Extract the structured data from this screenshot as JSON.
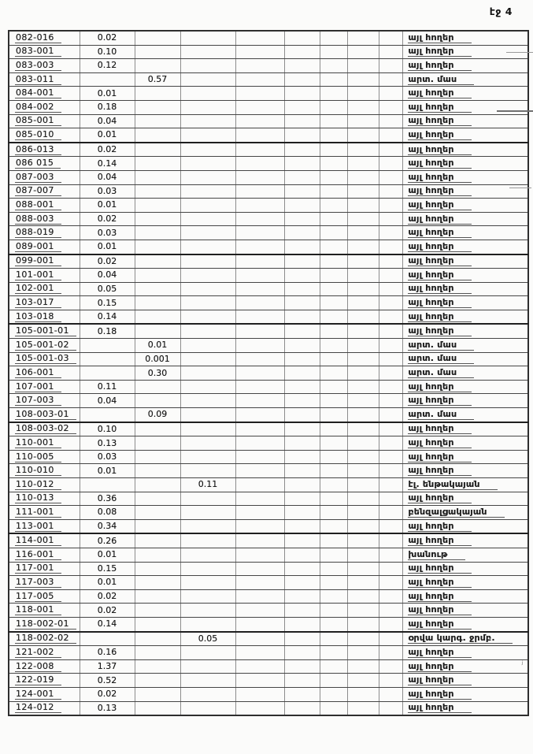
{
  "page": {
    "label": "էջ 4",
    "background": "#fbfbfa",
    "ink": "#1d1d1d"
  },
  "table": {
    "column_roles": [
      "parcel-code",
      "value-1",
      "value-2",
      "value-3",
      "empty",
      "empty",
      "empty",
      "empty",
      "empty",
      "land-type"
    ],
    "heavy_rule_after_codes": [
      "085-010",
      "089-001",
      "103-018",
      "108-003-01",
      "113-001",
      "118-002-01"
    ],
    "rows": [
      {
        "code": "082-016",
        "v1": "0.02",
        "v2": "",
        "v3": "",
        "name": "այլ հողեր"
      },
      {
        "code": "083-001",
        "v1": "0.10",
        "v2": "",
        "v3": "",
        "name": "այլ հողեր"
      },
      {
        "code": "083-003",
        "v1": "0.12",
        "v2": "",
        "v3": "",
        "name": "այլ հողեր"
      },
      {
        "code": "083-011",
        "v1": "",
        "v2": "0.57",
        "v3": "",
        "name": "արտ. մաս"
      },
      {
        "code": "084-001",
        "v1": "0.01",
        "v2": "",
        "v3": "",
        "name": "այլ հողեր"
      },
      {
        "code": "084-002",
        "v1": "0.18",
        "v2": "",
        "v3": "",
        "name": "այլ հողեր"
      },
      {
        "code": "085-001",
        "v1": "0.04",
        "v2": "",
        "v3": "",
        "name": "այլ հողեր"
      },
      {
        "code": "085-010",
        "v1": "0.01",
        "v2": "",
        "v3": "",
        "name": "այլ հողեր"
      },
      {
        "code": "086-013",
        "v1": "0.02",
        "v2": "",
        "v3": "",
        "name": "այլ հողեր"
      },
      {
        "code": "086 015",
        "v1": "0.14",
        "v2": "",
        "v3": "",
        "name": "այլ հողեր"
      },
      {
        "code": "087-003",
        "v1": "0.04",
        "v2": "",
        "v3": "",
        "name": "այլ հողեր"
      },
      {
        "code": "087-007",
        "v1": "0.03",
        "v2": "",
        "v3": "",
        "name": "այլ հողեր"
      },
      {
        "code": "088-001",
        "v1": "0.01",
        "v2": "",
        "v3": "",
        "name": "այլ հողեր"
      },
      {
        "code": "088-003",
        "v1": "0.02",
        "v2": "",
        "v3": "",
        "name": "այլ հողեր"
      },
      {
        "code": "088-019",
        "v1": "0.03",
        "v2": "",
        "v3": "",
        "name": "այլ հողեր"
      },
      {
        "code": "089-001",
        "v1": "0.01",
        "v2": "",
        "v3": "",
        "name": "այլ հողեր"
      },
      {
        "code": "099-001",
        "v1": "0.02",
        "v2": "",
        "v3": "",
        "name": "այլ հողեր"
      },
      {
        "code": "101-001",
        "v1": "0.04",
        "v2": "",
        "v3": "",
        "name": "այլ հողեր"
      },
      {
        "code": "102-001",
        "v1": "0.05",
        "v2": "",
        "v3": "",
        "name": "այլ հողեր"
      },
      {
        "code": "103-017",
        "v1": "0.15",
        "v2": "",
        "v3": "",
        "name": "այլ հողեր"
      },
      {
        "code": "103-018",
        "v1": "0.14",
        "v2": "",
        "v3": "",
        "name": "այլ հողեր"
      },
      {
        "code": "105-001-01",
        "v1": "0.18",
        "v2": "",
        "v3": "",
        "name": "այլ հողեր"
      },
      {
        "code": "105-001-02",
        "v1": "",
        "v2": "0.01",
        "v3": "",
        "name": "արտ. մաս"
      },
      {
        "code": "105-001-03",
        "v1": "",
        "v2": "0.001",
        "v3": "",
        "name": "արտ. մաս"
      },
      {
        "code": "106-001",
        "v1": "",
        "v2": "0.30",
        "v3": "",
        "name": "արտ. մաս"
      },
      {
        "code": "107-001",
        "v1": "0.11",
        "v2": "",
        "v3": "",
        "name": "այլ հողեր"
      },
      {
        "code": "107-003",
        "v1": "0.04",
        "v2": "",
        "v3": "",
        "name": "այլ հողեր"
      },
      {
        "code": "108-003-01",
        "v1": "",
        "v2": "0.09",
        "v3": "",
        "name": "արտ. մաս"
      },
      {
        "code": "108-003-02",
        "v1": "0.10",
        "v2": "",
        "v3": "",
        "name": "այլ հողեր"
      },
      {
        "code": "110-001",
        "v1": "0.13",
        "v2": "",
        "v3": "",
        "name": "այլ հողեր"
      },
      {
        "code": "110-005",
        "v1": "0.03",
        "v2": "",
        "v3": "",
        "name": "այլ հողեր"
      },
      {
        "code": "110-010",
        "v1": "0.01",
        "v2": "",
        "v3": "",
        "name": "այլ հողեր"
      },
      {
        "code": "110-012",
        "v1": "",
        "v2": "",
        "v3": "0.11",
        "name": "էլ. ենթակայան"
      },
      {
        "code": "110-013",
        "v1": "0.36",
        "v2": "",
        "v3": "",
        "name": "այլ հողեր"
      },
      {
        "code": "111-001",
        "v1": "0.08",
        "v2": "",
        "v3": "",
        "name": "բենզալցակայան"
      },
      {
        "code": "113-001",
        "v1": "0.34",
        "v2": "",
        "v3": "",
        "name": "այլ հողեր"
      },
      {
        "code": "114-001",
        "v1": "0.26",
        "v2": "",
        "v3": "",
        "name": "այլ հողեր"
      },
      {
        "code": "116-001",
        "v1": "0.01",
        "v2": "",
        "v3": "",
        "name": "խանութ"
      },
      {
        "code": "117-001",
        "v1": "0.15",
        "v2": "",
        "v3": "",
        "name": "այլ հողեր"
      },
      {
        "code": "117-003",
        "v1": "0.01",
        "v2": "",
        "v3": "",
        "name": "այլ հողեր"
      },
      {
        "code": "117-005",
        "v1": "0.02",
        "v2": "",
        "v3": "",
        "name": "այլ հողեր"
      },
      {
        "code": "118-001",
        "v1": "0.02",
        "v2": "",
        "v3": "",
        "name": "այլ հողեր"
      },
      {
        "code": "118-002-01",
        "v1": "0.14",
        "v2": "",
        "v3": "",
        "name": "այլ հողեր"
      },
      {
        "code": "118-002-02",
        "v1": "",
        "v2": "",
        "v3": "0.05",
        "name": "օրվա կարգ. ջրմբ."
      },
      {
        "code": "121-002",
        "v1": "0.16",
        "v2": "",
        "v3": "",
        "name": "այլ հողեր"
      },
      {
        "code": "122-008",
        "v1": "1.37",
        "v2": "",
        "v3": "",
        "name": "այլ հողեր"
      },
      {
        "code": "122-019",
        "v1": "0.52",
        "v2": "",
        "v3": "",
        "name": "այլ հողեր"
      },
      {
        "code": "124-001",
        "v1": "0.02",
        "v2": "",
        "v3": "",
        "name": "այլ հողեր"
      },
      {
        "code": "124-012",
        "v1": "0.13",
        "v2": "",
        "v3": "",
        "name": "այլ հողեր"
      }
    ]
  },
  "artifacts": {
    "dot": "·",
    "pen_mark": "ʲ"
  }
}
